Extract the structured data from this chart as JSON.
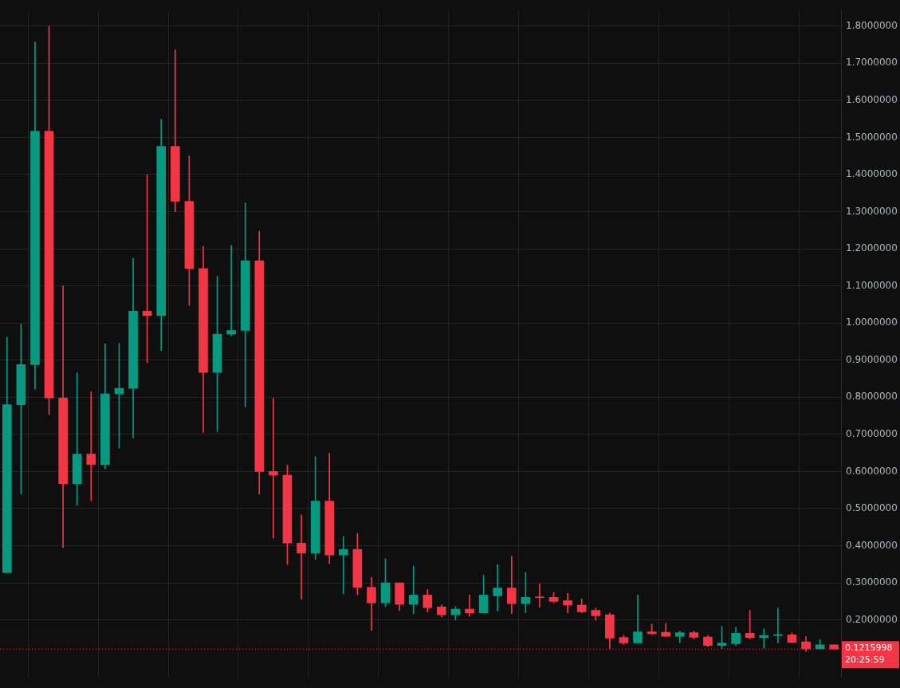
{
  "chart_data": {
    "type": "candlestick",
    "categories": [
      null,
      null,
      null,
      null,
      null,
      null,
      null,
      null,
      null,
      null,
      null,
      null,
      null,
      null,
      null,
      null,
      null,
      null,
      null,
      null,
      null,
      null,
      null,
      null,
      null,
      null,
      null,
      null,
      null,
      null,
      null,
      null,
      null,
      null,
      null,
      null,
      null,
      null,
      null,
      null,
      null,
      null,
      null,
      null,
      null,
      null,
      null,
      null,
      null,
      null,
      null,
      null,
      null,
      null,
      null,
      null,
      null,
      null,
      null,
      null
    ],
    "ohlc": [
      [
        0.328,
        0.962,
        0.328,
        0.78
      ],
      [
        0.78,
        0.997,
        0.539,
        0.888
      ],
      [
        0.888,
        1.757,
        0.822,
        1.517
      ],
      [
        1.517,
        1.8,
        0.753,
        0.798
      ],
      [
        0.798,
        1.1,
        0.395,
        0.567
      ],
      [
        0.567,
        0.866,
        0.509,
        0.647
      ],
      [
        0.647,
        0.815,
        0.521,
        0.619
      ],
      [
        0.619,
        0.944,
        0.607,
        0.809
      ],
      [
        0.809,
        0.945,
        0.663,
        0.824
      ],
      [
        0.824,
        1.174,
        0.69,
        1.032
      ],
      [
        1.032,
        1.4,
        0.893,
        1.02
      ],
      [
        1.02,
        1.549,
        0.926,
        1.476
      ],
      [
        1.476,
        1.736,
        1.3,
        1.328
      ],
      [
        1.328,
        1.45,
        1.047,
        1.147
      ],
      [
        1.147,
        1.207,
        0.705,
        0.867
      ],
      [
        0.867,
        1.126,
        0.707,
        0.97
      ],
      [
        0.97,
        1.209,
        0.965,
        0.98
      ],
      [
        0.98,
        1.324,
        0.774,
        1.168
      ],
      [
        1.168,
        1.247,
        0.539,
        0.6
      ],
      [
        0.6,
        0.797,
        0.42,
        0.59
      ],
      [
        0.59,
        0.617,
        0.349,
        0.407
      ],
      [
        0.407,
        0.483,
        0.256,
        0.38
      ],
      [
        0.38,
        0.64,
        0.363,
        0.52
      ],
      [
        0.52,
        0.649,
        0.352,
        0.375
      ],
      [
        0.375,
        0.425,
        0.27,
        0.39
      ],
      [
        0.39,
        0.433,
        0.268,
        0.288
      ],
      [
        0.288,
        0.315,
        0.172,
        0.246
      ],
      [
        0.246,
        0.365,
        0.236,
        0.3
      ],
      [
        0.3,
        0.3,
        0.225,
        0.242
      ],
      [
        0.242,
        0.345,
        0.217,
        0.267
      ],
      [
        0.267,
        0.282,
        0.221,
        0.233
      ],
      [
        0.235,
        0.241,
        0.208,
        0.214
      ],
      [
        0.214,
        0.236,
        0.2,
        0.229
      ],
      [
        0.229,
        0.267,
        0.21,
        0.219
      ],
      [
        0.219,
        0.32,
        0.219,
        0.267
      ],
      [
        0.265,
        0.349,
        0.224,
        0.286
      ],
      [
        0.286,
        0.372,
        0.217,
        0.244
      ],
      [
        0.244,
        0.328,
        0.219,
        0.261
      ],
      [
        0.262,
        0.297,
        0.234,
        0.26
      ],
      [
        0.261,
        0.274,
        0.246,
        0.25
      ],
      [
        0.252,
        0.272,
        0.219,
        0.24
      ],
      [
        0.24,
        0.257,
        0.219,
        0.222
      ],
      [
        0.226,
        0.232,
        0.199,
        0.211
      ],
      [
        0.214,
        0.219,
        0.123,
        0.151
      ],
      [
        0.153,
        0.159,
        0.134,
        0.138
      ],
      [
        0.138,
        0.267,
        0.138,
        0.168
      ],
      [
        0.168,
        0.189,
        0.161,
        0.163
      ],
      [
        0.167,
        0.191,
        0.156,
        0.156
      ],
      [
        0.156,
        0.17,
        0.138,
        0.166
      ],
      [
        0.166,
        0.17,
        0.149,
        0.153
      ],
      [
        0.154,
        0.159,
        0.128,
        0.131
      ],
      [
        0.131,
        0.183,
        0.123,
        0.138
      ],
      [
        0.136,
        0.18,
        0.131,
        0.164
      ],
      [
        0.164,
        0.226,
        0.149,
        0.152
      ],
      [
        0.152,
        0.176,
        0.124,
        0.158
      ],
      [
        0.158,
        0.232,
        0.138,
        0.16
      ],
      [
        0.16,
        0.165,
        0.139,
        0.139
      ],
      [
        0.141,
        0.155,
        0.115,
        0.122
      ],
      [
        0.122,
        0.147,
        0.122,
        0.133
      ],
      [
        0.133,
        0.133,
        0.1216,
        0.1216
      ]
    ],
    "colors": [
      "#089981",
      "#089981",
      "#089981",
      "#f23645",
      "#f23645",
      "#089981",
      "#f23645",
      "#089981",
      "#089981",
      "#089981",
      "#f23645",
      "#089981",
      "#f23645",
      "#f23645",
      "#f23645",
      "#089981",
      "#089981",
      "#089981",
      "#f23645",
      "#f23645",
      "#f23645",
      "#f23645",
      "#089981",
      "#f23645",
      "#089981",
      "#f23645",
      "#f23645",
      "#089981",
      "#f23645",
      "#089981",
      "#f23645",
      "#f23645",
      "#089981",
      "#f23645",
      "#089981",
      "#089981",
      "#f23645",
      "#089981",
      "#f23645",
      "#f23645",
      "#f23645",
      "#f23645",
      "#f23645",
      "#f23645",
      "#f23645",
      "#089981",
      "#f23645",
      "#f23645",
      "#089981",
      "#f23645",
      "#f23645",
      "#089981",
      "#089981",
      "#f23645",
      "#089981",
      "#089981",
      "#f23645",
      "#f23645",
      "#089981",
      "#f23645"
    ],
    "ylim": [
      0.045,
      1.842
    ],
    "yticks": [
      {
        "value": 0.2,
        "label": "0.2000000"
      },
      {
        "value": 0.3,
        "label": "0.3000000"
      },
      {
        "value": 0.4,
        "label": "0.4000000"
      },
      {
        "value": 0.5,
        "label": "0.5000000"
      },
      {
        "value": 0.6,
        "label": "0.6000000"
      },
      {
        "value": 0.7,
        "label": "0.7000000"
      },
      {
        "value": 0.8,
        "label": "0.8000000"
      },
      {
        "value": 0.9,
        "label": "0.9000000"
      },
      {
        "value": 1.0,
        "label": "1.0000000"
      },
      {
        "value": 1.1,
        "label": "1.1000000"
      },
      {
        "value": 1.2,
        "label": "1.2000000"
      },
      {
        "value": 1.3,
        "label": "1.3000000"
      },
      {
        "value": 1.4,
        "label": "1.4000000"
      },
      {
        "value": 1.5,
        "label": "1.5000000"
      },
      {
        "value": 1.6,
        "label": "1.6000000"
      },
      {
        "value": 1.7,
        "label": "1.7000000"
      },
      {
        "value": 1.8,
        "label": "1.8000000"
      }
    ],
    "tick_labels": "y",
    "grid": true,
    "legend": false,
    "ref_lines": [
      {
        "axis": "y",
        "value": 0.1215998,
        "label": "0.1215998",
        "color": "#f23645",
        "line_style": "dotted"
      }
    ],
    "annotations": [
      "20:25:59"
    ]
  }
}
